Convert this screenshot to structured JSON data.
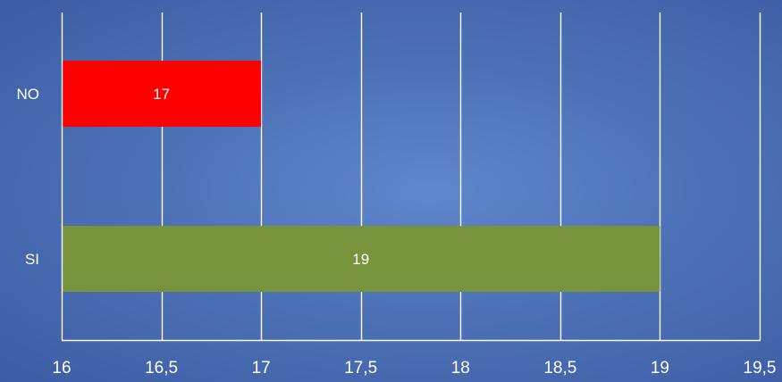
{
  "chart_data": {
    "type": "bar",
    "orientation": "horizontal",
    "categories": [
      "NO",
      "SI"
    ],
    "values": [
      17,
      19
    ],
    "data_labels": [
      "17",
      "19"
    ],
    "bar_colors": [
      "#ff0000",
      "#77933c"
    ],
    "xlim": [
      16,
      19.5
    ],
    "x_ticks": [
      16,
      16.5,
      17,
      17.5,
      18,
      18.5,
      19,
      19.5
    ],
    "x_tick_labels": [
      "16",
      "16,5",
      "17",
      "17,5",
      "18",
      "18,5",
      "19",
      "19,5"
    ],
    "grid": "vertical",
    "grid_color": "#ffffff",
    "title": "",
    "xlabel": "",
    "ylabel": "",
    "legend": "none"
  }
}
